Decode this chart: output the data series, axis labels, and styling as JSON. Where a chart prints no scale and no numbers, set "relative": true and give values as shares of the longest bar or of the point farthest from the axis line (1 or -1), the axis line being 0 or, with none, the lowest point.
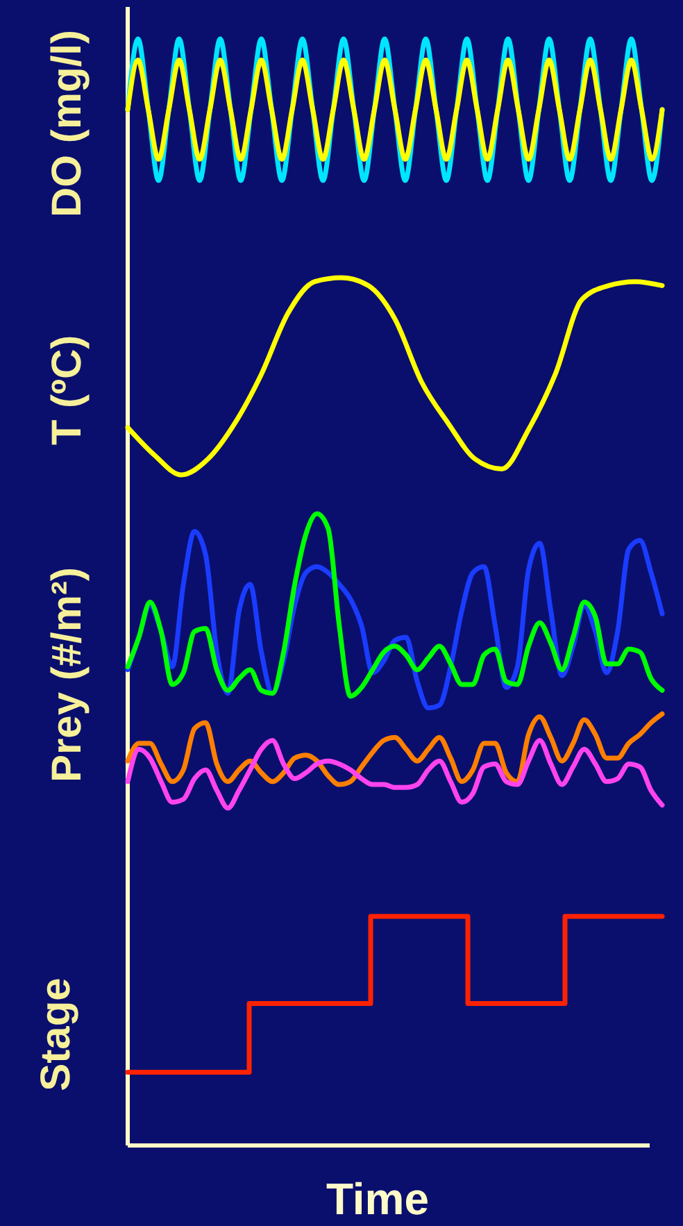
{
  "chart_data": [
    {
      "type": "line",
      "ylabel": "DO (mg/l)",
      "relative": true,
      "categories": [
        null,
        null,
        null,
        null,
        null,
        null,
        null,
        null,
        null,
        null,
        null,
        null,
        null,
        null,
        null,
        null,
        null,
        null,
        null,
        null,
        null,
        null,
        null,
        null,
        null,
        null,
        null,
        null,
        null,
        null,
        null,
        null,
        null,
        null,
        null,
        null,
        null,
        null,
        null,
        null,
        null,
        null,
        null,
        null,
        null,
        null,
        null,
        null,
        null,
        null,
        null,
        null,
        null
      ],
      "series": [
        {
          "color": "#00e5ff",
          "values": [
            0.5,
            1,
            0.5,
            0,
            0.5,
            1,
            0.5,
            0,
            0.5,
            1,
            0.5,
            0,
            0.5,
            1,
            0.5,
            0,
            0.5,
            1,
            0.5,
            0,
            0.5,
            1,
            0.5,
            0,
            0.5,
            1,
            0.5,
            0,
            0.5,
            1,
            0.5,
            0,
            0.5,
            1,
            0.5,
            0,
            0.5,
            1,
            0.5,
            0,
            0.5,
            1,
            0.5,
            0,
            0.5,
            1,
            0.5,
            0,
            0.5,
            1,
            0.5,
            0,
            0.5
          ]
        },
        {
          "color": "#ffff00",
          "values": [
            0.5,
            0.85,
            0.5,
            0.15,
            0.5,
            0.85,
            0.5,
            0.15,
            0.5,
            0.85,
            0.5,
            0.15,
            0.5,
            0.85,
            0.5,
            0.15,
            0.5,
            0.85,
            0.5,
            0.15,
            0.5,
            0.85,
            0.5,
            0.15,
            0.5,
            0.85,
            0.5,
            0.15,
            0.5,
            0.85,
            0.5,
            0.15,
            0.5,
            0.85,
            0.5,
            0.15,
            0.5,
            0.85,
            0.5,
            0.15,
            0.5,
            0.85,
            0.5,
            0.15,
            0.5,
            0.85,
            0.5,
            0.15,
            0.5,
            0.85,
            0.5,
            0.15,
            0.5
          ]
        }
      ]
    },
    {
      "type": "line",
      "ylabel": "T (ºC)",
      "relative": true,
      "categories": [
        null,
        null,
        null,
        null,
        null,
        null,
        null,
        null,
        null,
        null,
        null,
        null,
        null,
        null,
        null,
        null,
        null,
        null,
        null,
        null,
        null
      ],
      "series": [
        {
          "color": "#ffff00",
          "values": [
            0.24,
            0.1,
            0,
            0.08,
            0.26,
            0.51,
            0.82,
            0.98,
            1,
            0.96,
            0.79,
            0.47,
            0.26,
            0.08,
            0.03,
            0.23,
            0.51,
            0.89,
            0.96,
            0.98,
            0.96
          ]
        }
      ]
    },
    {
      "type": "line",
      "ylabel": "Prey (#/m²)",
      "relative": true,
      "categories": [
        null,
        null,
        null,
        null,
        null,
        null,
        null,
        null,
        null,
        null,
        null,
        null,
        null,
        null,
        null,
        null,
        null,
        null,
        null,
        null,
        null,
        null,
        null,
        null,
        null,
        null,
        null,
        null,
        null,
        null,
        null,
        null,
        null,
        null,
        null,
        null,
        null,
        null,
        null,
        null,
        null,
        null,
        null,
        null,
        null,
        null,
        null,
        null,
        null
      ],
      "series": [
        {
          "color": "#1a3cff",
          "values": [
            0.47,
            0.58,
            0.69,
            0.6,
            0.48,
            0.76,
            0.94,
            0.86,
            0.53,
            0.39,
            0.67,
            0.76,
            0.53,
            0.39,
            0.5,
            0.69,
            0.8,
            0.82,
            0.8,
            0.76,
            0.71,
            0.62,
            0.46,
            0.5,
            0.57,
            0.58,
            0.43,
            0.34,
            0.35,
            0.48,
            0.67,
            0.8,
            0.82,
            0.62,
            0.41,
            0.48,
            0.81,
            0.9,
            0.67,
            0.45,
            0.55,
            0.69,
            0.6,
            0.46,
            0.6,
            0.88,
            0.91,
            0.8,
            0.66
          ]
        },
        {
          "color": "#00ff00",
          "values": [
            0.48,
            0.58,
            0.7,
            0.6,
            0.42,
            0.46,
            0.6,
            0.61,
            0.47,
            0.4,
            0.44,
            0.47,
            0.4,
            0.39,
            0.53,
            0.76,
            0.93,
            1,
            0.95,
            0.62,
            0.38,
            0.41,
            0.47,
            0.53,
            0.55,
            0.52,
            0.47,
            0.51,
            0.55,
            0.49,
            0.42,
            0.42,
            0.52,
            0.54,
            0.43,
            0.42,
            0.55,
            0.63,
            0.56,
            0.47,
            0.58,
            0.7,
            0.65,
            0.49,
            0.49,
            0.54,
            0.53,
            0.44,
            0.4
          ]
        },
        {
          "color": "#ff7f00",
          "values": [
            0.16,
            0.22,
            0.22,
            0.15,
            0.09,
            0.13,
            0.27,
            0.29,
            0.15,
            0.09,
            0.13,
            0.16,
            0.12,
            0.09,
            0.12,
            0.17,
            0.18,
            0.16,
            0.11,
            0.08,
            0.09,
            0.14,
            0.19,
            0.23,
            0.24,
            0.2,
            0.16,
            0.2,
            0.24,
            0.17,
            0.09,
            0.13,
            0.22,
            0.22,
            0.12,
            0.09,
            0.25,
            0.31,
            0.24,
            0.16,
            0.22,
            0.3,
            0.25,
            0.17,
            0.17,
            0.22,
            0.25,
            0.29,
            0.32
          ]
        },
        {
          "color": "#ff44ee",
          "values": [
            0.09,
            0.2,
            0.17,
            0.09,
            0.02,
            0.03,
            0.1,
            0.13,
            0.06,
            0,
            0.06,
            0.13,
            0.2,
            0.23,
            0.15,
            0.1,
            0.12,
            0.15,
            0.16,
            0.15,
            0.13,
            0.1,
            0.08,
            0.08,
            0.07,
            0.07,
            0.08,
            0.13,
            0.16,
            0.09,
            0.02,
            0.05,
            0.14,
            0.15,
            0.09,
            0.08,
            0.16,
            0.23,
            0.15,
            0.08,
            0.14,
            0.2,
            0.15,
            0.09,
            0.1,
            0.15,
            0.14,
            0.06,
            0.01
          ]
        }
      ]
    },
    {
      "type": "step",
      "ylabel": "Stage",
      "xlabel": "Time",
      "relative": true,
      "categories": [
        null,
        null,
        null,
        null,
        null,
        null,
        null,
        null,
        null,
        null,
        null,
        null,
        null,
        null,
        null,
        null,
        null,
        null,
        null,
        null,
        null,
        null,
        null
      ],
      "series": [
        {
          "color": "#ff2200",
          "values": [
            0.32,
            0.32,
            0.32,
            0.32,
            0.32,
            0.62,
            0.62,
            0.62,
            0.62,
            0.62,
            1,
            1,
            1,
            1,
            0.62,
            0.62,
            0.62,
            0.62,
            1,
            1,
            1,
            1,
            1
          ]
        }
      ]
    }
  ]
}
